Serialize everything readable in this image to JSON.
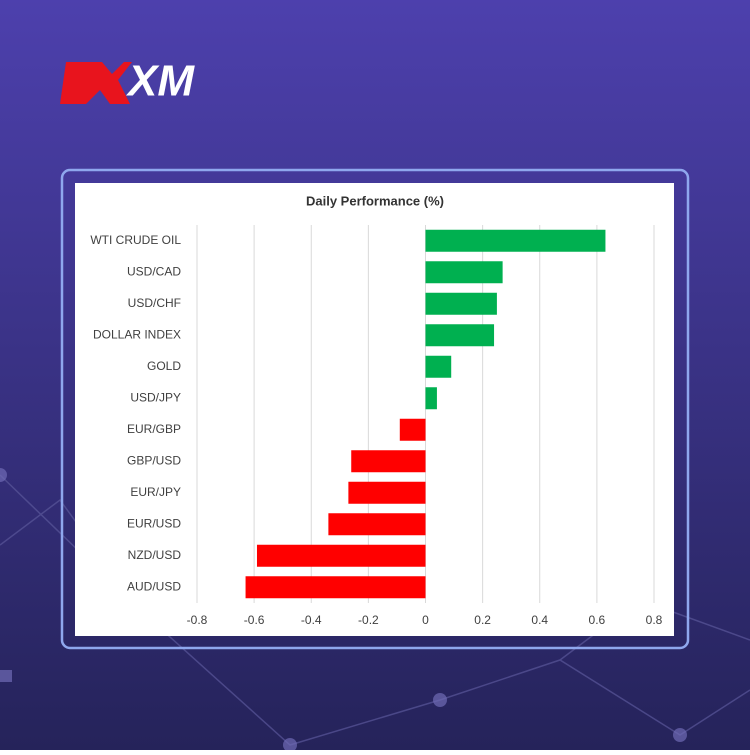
{
  "logo": "XM",
  "chart_data": {
    "type": "bar",
    "orientation": "horizontal",
    "title": "Daily Performance (%)",
    "categories": [
      "WTI CRUDE OIL",
      "USD/CAD",
      "USD/CHF",
      "DOLLAR INDEX",
      "GOLD",
      "USD/JPY",
      "EUR/GBP",
      "GBP/USD",
      "EUR/JPY",
      "EUR/USD",
      "NZD/USD",
      "AUD/USD"
    ],
    "values": [
      0.63,
      0.27,
      0.25,
      0.24,
      0.09,
      0.04,
      -0.09,
      -0.26,
      -0.27,
      -0.34,
      -0.59,
      -0.63
    ],
    "positive_color": "#00b050",
    "negative_color": "#ff0000",
    "xlim": [
      -0.8,
      0.8
    ],
    "xticks": [
      -0.8,
      -0.6,
      -0.4,
      -0.2,
      0,
      0.2,
      0.4,
      0.6,
      0.8
    ],
    "grid": true
  }
}
